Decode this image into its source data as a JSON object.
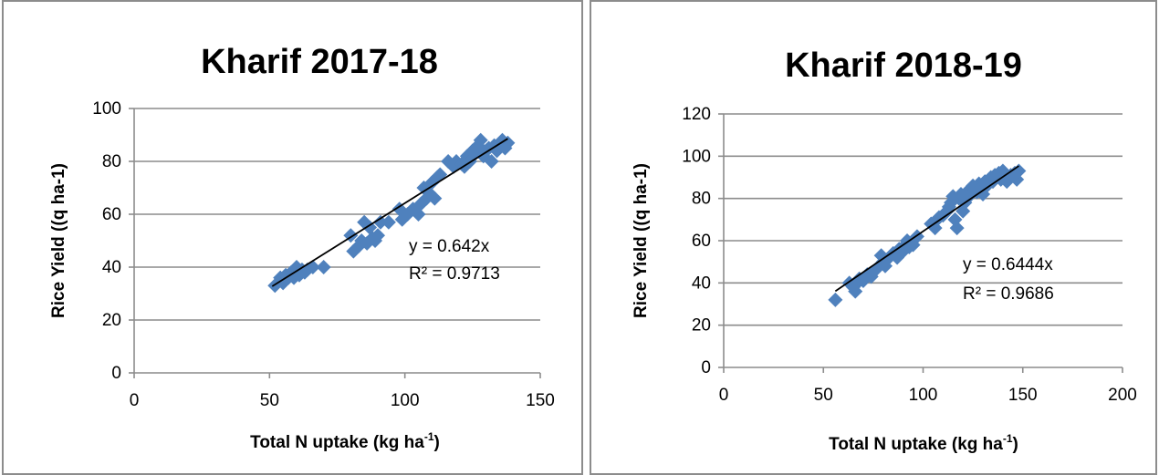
{
  "chart_data": [
    {
      "type": "scatter",
      "title": "Kharif 2017-18",
      "xlabel": "Total N uptake (kg ha",
      "xlabel_sup": "-1",
      "xlabel_close": ")",
      "ylabel": "Rice Yield ((q ha-1)",
      "xlim": [
        0,
        150
      ],
      "ylim": [
        0,
        100
      ],
      "x_ticks": [
        0,
        50,
        100,
        150
      ],
      "y_ticks": [
        0,
        20,
        40,
        60,
        80,
        100
      ],
      "grid": true,
      "marker_color": "#4f81bd",
      "trendline": {
        "slope": 0.642,
        "x_range": [
          51,
          138
        ]
      },
      "equation": "y = 0.642x",
      "r_squared": "R² = 0.9713",
      "points": [
        [
          52,
          33
        ],
        [
          54,
          36
        ],
        [
          55,
          34
        ],
        [
          56,
          37
        ],
        [
          57,
          36
        ],
        [
          58,
          38
        ],
        [
          59,
          36
        ],
        [
          60,
          40
        ],
        [
          61,
          37
        ],
        [
          62,
          39
        ],
        [
          63,
          38
        ],
        [
          64,
          39
        ],
        [
          66,
          40
        ],
        [
          70,
          40
        ],
        [
          80,
          52
        ],
        [
          81,
          46
        ],
        [
          83,
          48
        ],
        [
          84,
          50
        ],
        [
          85,
          57
        ],
        [
          86,
          49
        ],
        [
          87,
          55
        ],
        [
          88,
          51
        ],
        [
          89,
          50
        ],
        [
          90,
          52
        ],
        [
          91,
          57
        ],
        [
          94,
          57
        ],
        [
          98,
          62
        ],
        [
          99,
          58
        ],
        [
          101,
          60
        ],
        [
          103,
          62
        ],
        [
          105,
          60
        ],
        [
          106,
          64
        ],
        [
          107,
          70
        ],
        [
          108,
          66
        ],
        [
          109,
          68
        ],
        [
          110,
          72
        ],
        [
          111,
          66
        ],
        [
          112,
          74
        ],
        [
          113,
          75
        ],
        [
          116,
          80
        ],
        [
          118,
          78
        ],
        [
          119,
          80
        ],
        [
          121,
          79
        ],
        [
          122,
          78
        ],
        [
          123,
          82
        ],
        [
          124,
          80
        ],
        [
          125,
          84
        ],
        [
          126,
          83
        ],
        [
          127,
          86
        ],
        [
          128,
          88
        ],
        [
          129,
          82
        ],
        [
          130,
          84
        ],
        [
          131,
          85
        ],
        [
          132,
          80
        ],
        [
          133,
          86
        ],
        [
          134,
          84
        ],
        [
          135,
          86
        ],
        [
          136,
          88
        ],
        [
          137,
          85
        ],
        [
          138,
          87
        ]
      ]
    },
    {
      "type": "scatter",
      "title": "Kharif 2018-19",
      "xlabel": "Total N uptake (kg ha",
      "xlabel_sup": "-1",
      "xlabel_close": ")",
      "ylabel": "Rice Yield ((q ha-1)",
      "xlim": [
        0,
        200
      ],
      "ylim": [
        0,
        120
      ],
      "x_ticks": [
        0,
        50,
        100,
        150,
        200
      ],
      "y_ticks": [
        0,
        20,
        40,
        60,
        80,
        100,
        120
      ],
      "grid": true,
      "marker_color": "#4f81bd",
      "trendline": {
        "slope": 0.6444,
        "x_range": [
          56,
          148
        ]
      },
      "equation": "y = 0.6444x",
      "r_squared": "R² = 0.9686",
      "points": [
        [
          56,
          32
        ],
        [
          63,
          40
        ],
        [
          65,
          38
        ],
        [
          66,
          36
        ],
        [
          67,
          40
        ],
        [
          68,
          42
        ],
        [
          70,
          41
        ],
        [
          72,
          44
        ],
        [
          74,
          43
        ],
        [
          76,
          46
        ],
        [
          78,
          48
        ],
        [
          79,
          53
        ],
        [
          80,
          50
        ],
        [
          81,
          48
        ],
        [
          83,
          52
        ],
        [
          85,
          54
        ],
        [
          87,
          52
        ],
        [
          88,
          56
        ],
        [
          90,
          55
        ],
        [
          91,
          58
        ],
        [
          92,
          60
        ],
        [
          93,
          57
        ],
        [
          95,
          58
        ],
        [
          97,
          62
        ],
        [
          104,
          68
        ],
        [
          106,
          66
        ],
        [
          107,
          70
        ],
        [
          108,
          71
        ],
        [
          110,
          72
        ],
        [
          112,
          74
        ],
        [
          113,
          76
        ],
        [
          114,
          78
        ],
        [
          115,
          81
        ],
        [
          116,
          70
        ],
        [
          117,
          66
        ],
        [
          118,
          80
        ],
        [
          119,
          82
        ],
        [
          120,
          74
        ],
        [
          121,
          78
        ],
        [
          122,
          80
        ],
        [
          123,
          84
        ],
        [
          124,
          82
        ],
        [
          125,
          86
        ],
        [
          126,
          84
        ],
        [
          127,
          83
        ],
        [
          128,
          87
        ],
        [
          129,
          85
        ],
        [
          130,
          82
        ],
        [
          131,
          88
        ],
        [
          132,
          86
        ],
        [
          133,
          89
        ],
        [
          134,
          90
        ],
        [
          135,
          88
        ],
        [
          136,
          91
        ],
        [
          137,
          90
        ],
        [
          138,
          92
        ],
        [
          139,
          89
        ],
        [
          140,
          93
        ],
        [
          142,
          88
        ],
        [
          144,
          91
        ],
        [
          146,
          92
        ],
        [
          147,
          89
        ],
        [
          148,
          93
        ]
      ]
    }
  ]
}
